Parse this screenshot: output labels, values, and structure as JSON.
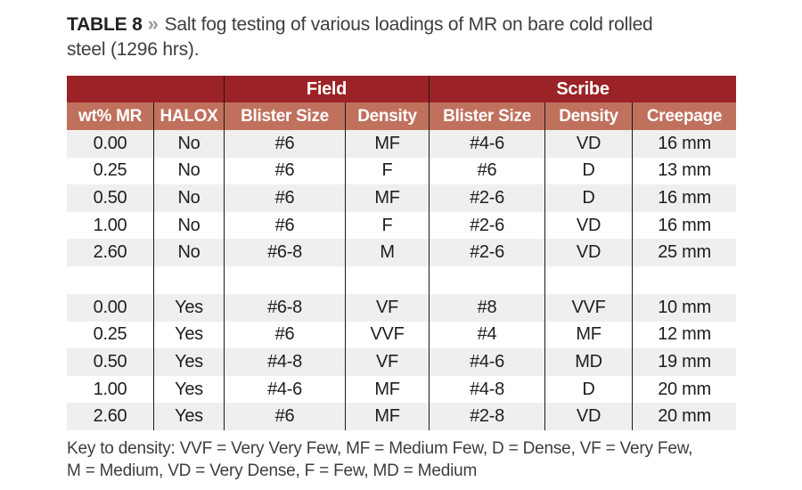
{
  "caption": {
    "label": "TABLE 8",
    "separator": "»",
    "line1": "Salt fog testing of various loadings of MR on bare cold rolled",
    "line2": "steel (1296 hrs)."
  },
  "table": {
    "section_headers": [
      "",
      "Field",
      "Scribe"
    ],
    "column_headers": [
      "wt% MR",
      "HALOX",
      "Blister Size",
      "Density",
      "Blister Size",
      "Density",
      "Creepage"
    ],
    "row_groups": [
      {
        "rows": [
          [
            "0.00",
            "No",
            "#6",
            "MF",
            "#4-6",
            "VD",
            "16 mm"
          ],
          [
            "0.25",
            "No",
            "#6",
            "F",
            "#6",
            "D",
            "13 mm"
          ],
          [
            "0.50",
            "No",
            "#6",
            "MF",
            "#2-6",
            "D",
            "16 mm"
          ],
          [
            "1.00",
            "No",
            "#6",
            "F",
            "#2-6",
            "VD",
            "16 mm"
          ],
          [
            "2.60",
            "No",
            "#6-8",
            "M",
            "#2-6",
            "VD",
            "25 mm"
          ]
        ]
      },
      {
        "rows": [
          [
            "0.00",
            "Yes",
            "#6-8",
            "VF",
            "#8",
            "VVF",
            "10 mm"
          ],
          [
            "0.25",
            "Yes",
            "#6",
            "VVF",
            "#4",
            "MF",
            "12 mm"
          ],
          [
            "0.50",
            "Yes",
            "#4-8",
            "VF",
            "#4-6",
            "MD",
            "19 mm"
          ],
          [
            "1.00",
            "Yes",
            "#4-6",
            "MF",
            "#4-8",
            "D",
            "20 mm"
          ],
          [
            "2.60",
            "Yes",
            "#6",
            "MF",
            "#2-8",
            "VD",
            "20 mm"
          ]
        ]
      }
    ]
  },
  "key": {
    "lines": [
      "Key to density: VVF = Very Very Few, MF = Medium Few, D = Dense, VF = Very Few,",
      "M = Medium, VD = Very Dense, F = Few, MD = Medium"
    ]
  },
  "colors": {
    "header_dark": "#9b2226",
    "header_light": "#c0715d",
    "row_alt": "#efefef",
    "row_white": "#ffffff"
  }
}
